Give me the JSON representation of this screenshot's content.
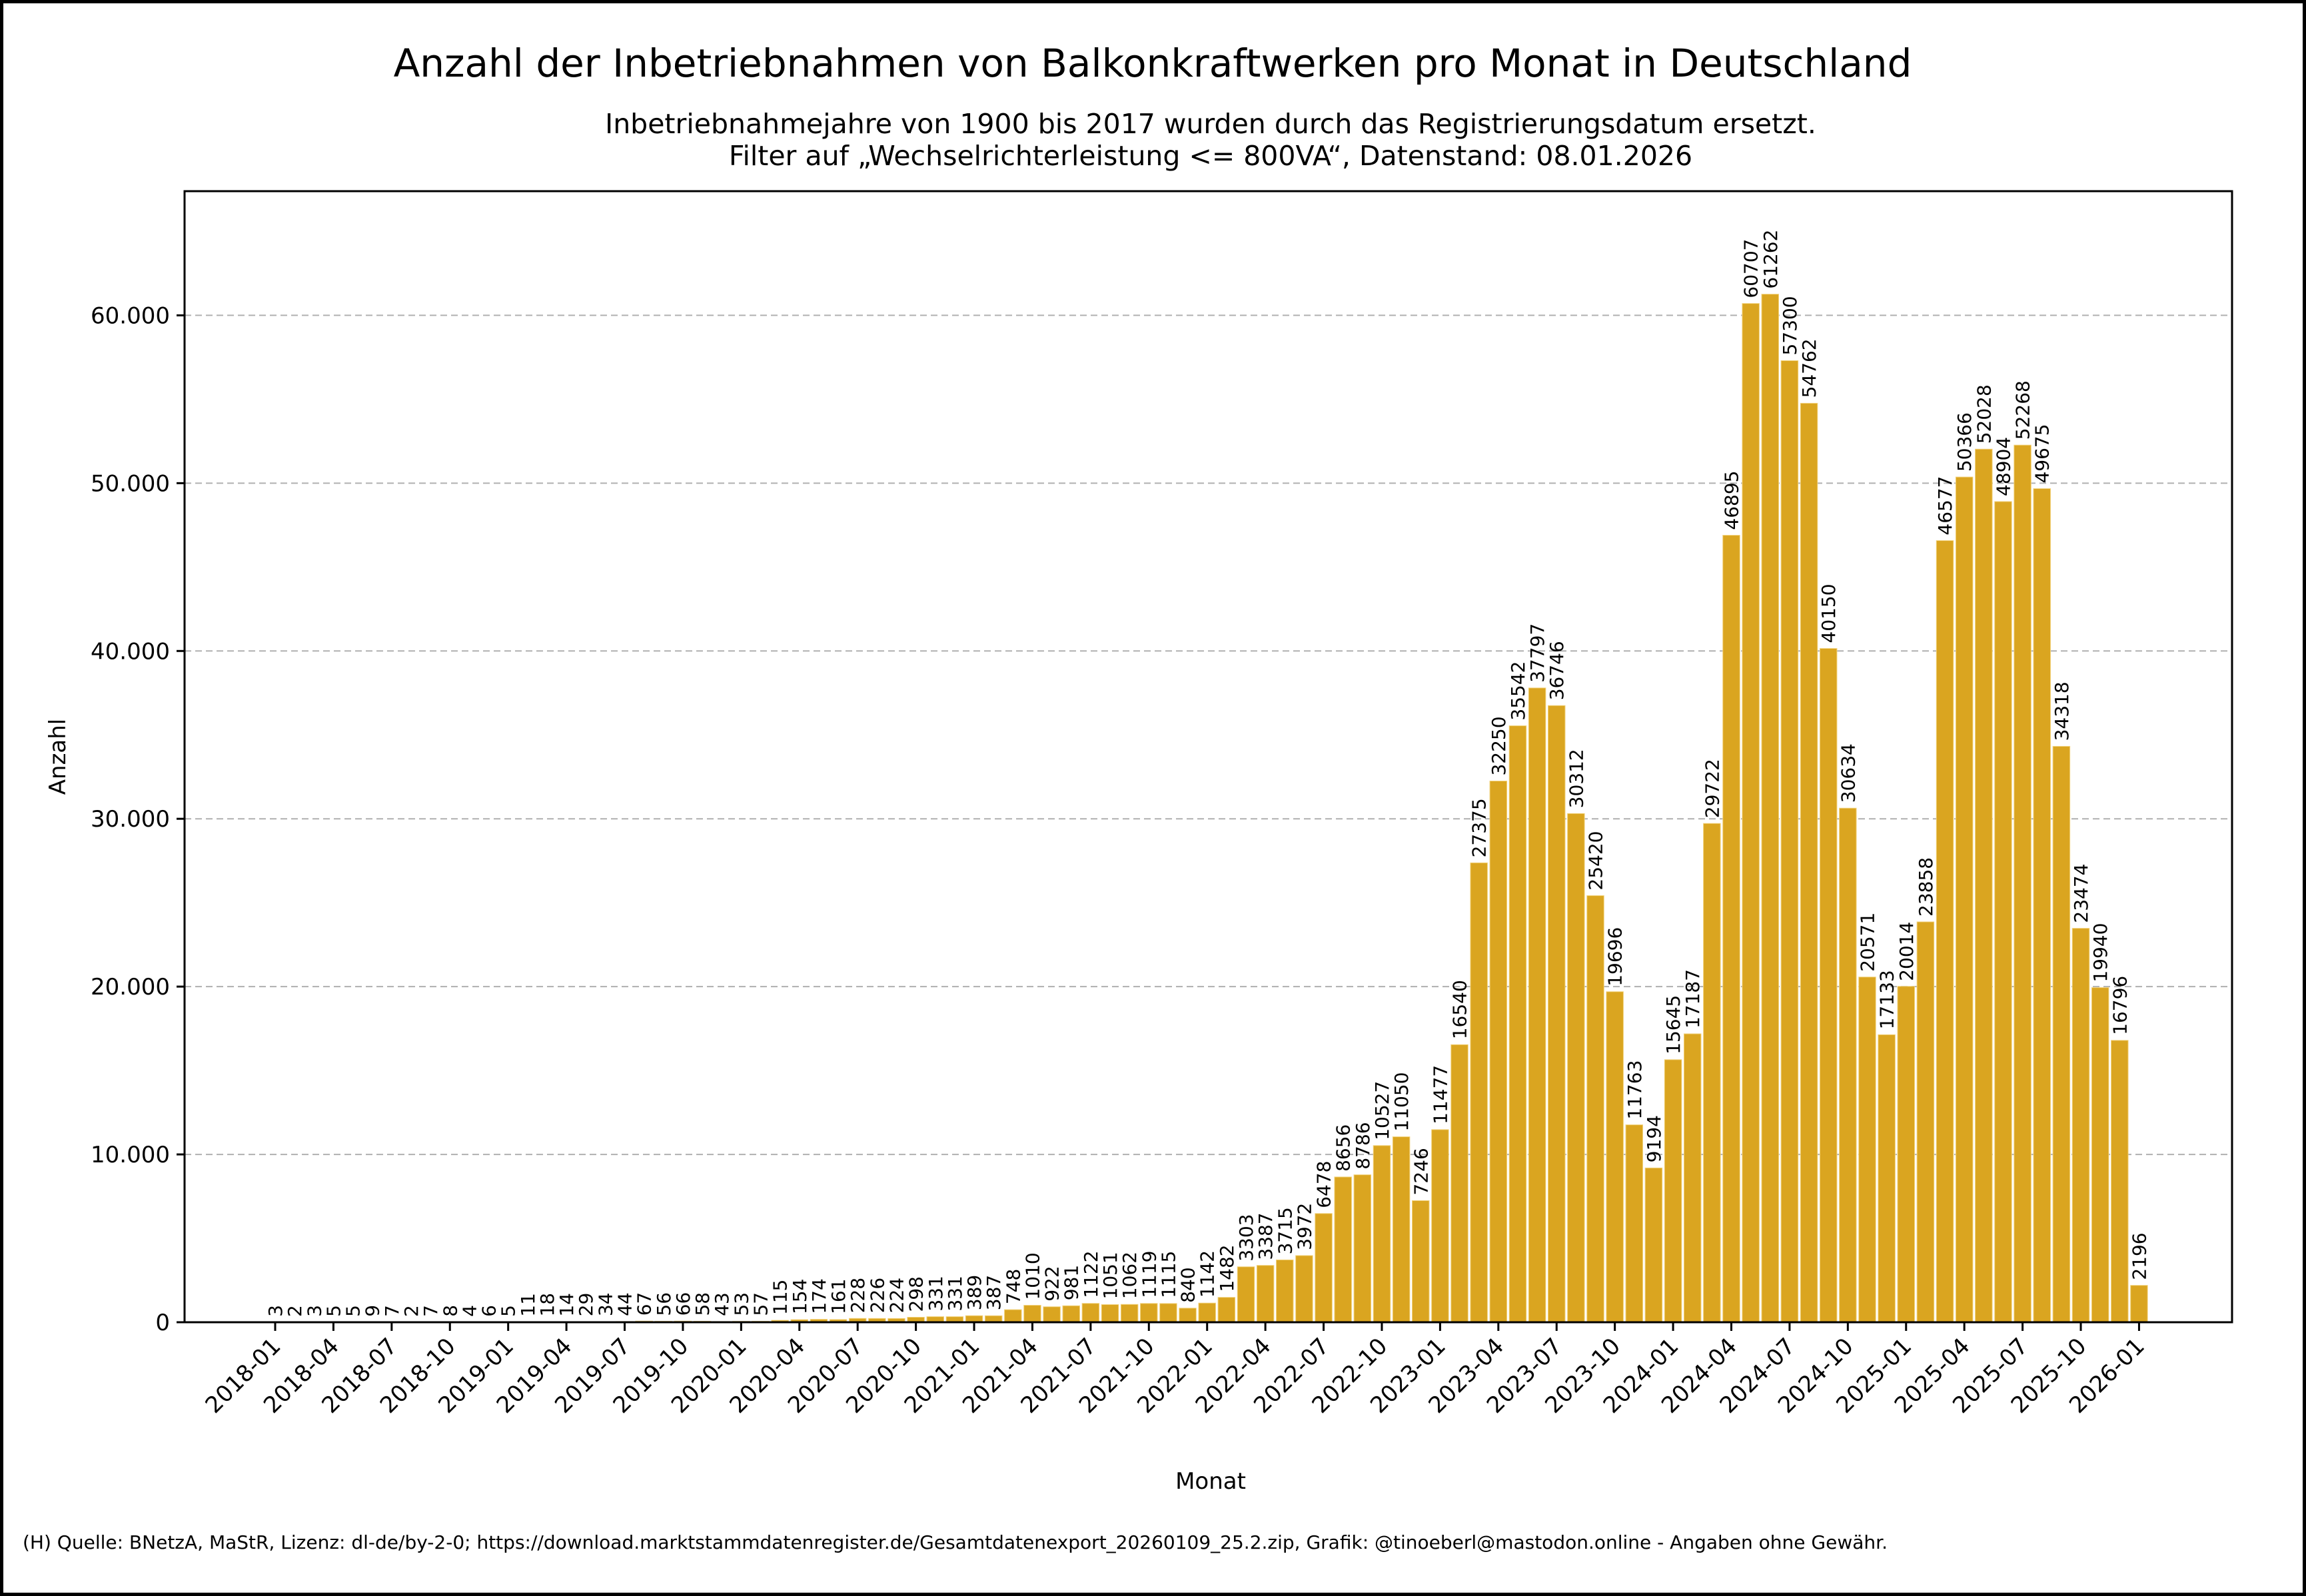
{
  "chart_data": {
    "type": "bar",
    "title": "Anzahl der Inbetriebnahmen von Balkonkraftwerken pro Monat in Deutschland",
    "subtitle_lines": [
      "Inbetriebnahmejahre von 1900 bis 2017 wurden durch das Registrierungsdatum ersetzt.",
      "Filter auf „Wechselrichterleistung <= 800VA“, Datenstand: 08.01.2026"
    ],
    "xlabel": "Monat",
    "ylabel": "Anzahl",
    "ylim": [
      0,
      67400
    ],
    "yticks": [
      0,
      10000,
      20000,
      30000,
      40000,
      50000,
      60000
    ],
    "ytick_labels": [
      "0",
      "10.000",
      "20.000",
      "30.000",
      "40.000",
      "50.000",
      "60.000"
    ],
    "grid": "y-dashed",
    "bar_color": "#DAA520",
    "start_month": "2018-01",
    "xtick_labels": [
      "2018-01",
      "2018-04",
      "2018-07",
      "2018-10",
      "2019-01",
      "2019-04",
      "2019-07",
      "2019-10",
      "2020-01",
      "2020-04",
      "2020-07",
      "2020-10",
      "2021-01",
      "2021-04",
      "2021-07",
      "2021-10",
      "2022-01",
      "2022-04",
      "2022-07",
      "2022-10",
      "2023-01",
      "2023-04",
      "2023-07",
      "2023-10",
      "2024-01",
      "2024-04",
      "2024-07",
      "2024-10",
      "2025-01",
      "2025-04",
      "2025-07",
      "2025-10",
      "2026-01"
    ],
    "xtick_every": 3,
    "values": [
      3,
      2,
      3,
      5,
      5,
      9,
      7,
      2,
      7,
      8,
      4,
      6,
      5,
      11,
      18,
      14,
      29,
      34,
      44,
      67,
      56,
      66,
      58,
      43,
      53,
      57,
      115,
      154,
      174,
      161,
      228,
      226,
      224,
      298,
      331,
      331,
      389,
      387,
      748,
      1010,
      922,
      981,
      1122,
      1051,
      1062,
      1119,
      1115,
      840,
      1142,
      1482,
      3303,
      3387,
      3715,
      3972,
      6478,
      8656,
      8786,
      10527,
      11050,
      7246,
      11477,
      16540,
      27375,
      32250,
      35542,
      37797,
      36746,
      30312,
      25420,
      19696,
      11763,
      9194,
      15645,
      17187,
      29722,
      46895,
      60707,
      61262,
      57300,
      54762,
      40150,
      30634,
      20571,
      17133,
      20014,
      23858,
      46577,
      50366,
      52028,
      48904,
      52268,
      49675,
      34318,
      23474,
      19940,
      16796,
      2196
    ]
  },
  "footer": "(H) Quelle: BNetzA, MaStR, Lizenz: dl-de/by-2-0; https://download.marktstammdatenregister.de/Gesamtdatenexport_20260109_25.2.zip, Grafik: @tinoeberl@mastodon.online - Angaben ohne Gewähr."
}
